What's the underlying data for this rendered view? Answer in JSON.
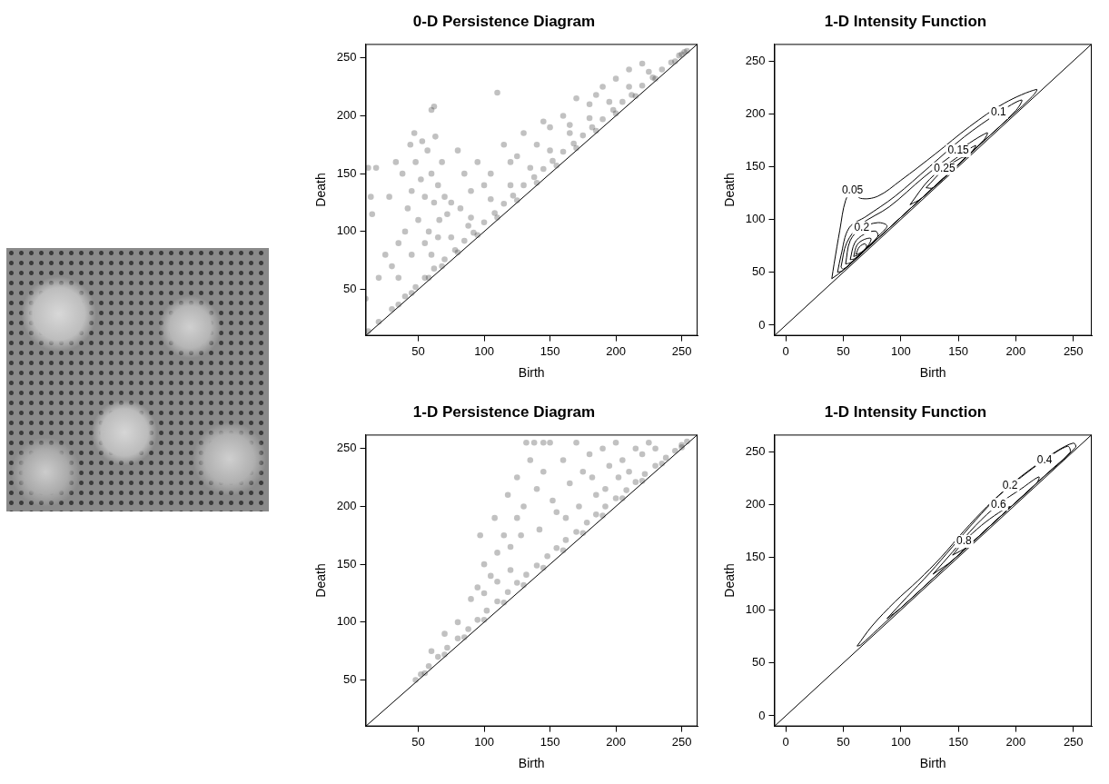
{
  "chart_data": [
    {
      "type": "scatter",
      "title": "0-D Persistence Diagram",
      "x_label": "Birth",
      "y_label": "Death",
      "xlim": [
        10,
        262
      ],
      "ylim": [
        10,
        262
      ],
      "xticks": [
        50,
        100,
        150,
        200,
        250
      ],
      "yticks": [
        50,
        100,
        150,
        200,
        250
      ],
      "grid": false,
      "color": "#333333",
      "marker": "circle",
      "x": [
        12,
        20,
        30,
        40,
        48,
        55,
        62,
        70,
        78,
        85,
        92,
        100,
        108,
        115,
        122,
        130,
        138,
        145,
        152,
        160,
        168,
        175,
        182,
        190,
        198,
        205,
        212,
        220,
        228,
        235,
        242,
        248,
        252,
        254,
        35,
        45,
        58,
        68,
        80,
        95,
        110,
        125,
        140,
        155,
        170,
        185,
        200,
        215,
        230,
        245,
        250,
        60,
        75,
        90,
        105,
        120,
        135,
        150,
        165,
        180,
        195,
        210,
        225,
        38,
        42,
        45,
        48,
        50,
        52,
        55,
        57,
        58,
        60,
        62,
        63,
        65,
        66,
        68,
        70,
        72,
        44,
        40,
        35,
        30,
        25,
        20,
        15,
        12,
        14,
        10,
        18,
        28,
        33,
        47,
        53,
        60,
        62,
        80,
        85,
        90,
        95,
        100,
        110,
        115,
        120,
        130,
        140,
        150,
        160,
        170,
        180,
        190,
        200,
        210,
        220,
        75,
        82,
        88,
        105,
        125,
        145,
        165,
        185,
        55,
        65,
        45,
        35
      ],
      "values": [
        14,
        22,
        33,
        44,
        52,
        60,
        68,
        76,
        84,
        92,
        99,
        108,
        116,
        124,
        131,
        140,
        147,
        154,
        161,
        169,
        176,
        183,
        190,
        197,
        205,
        212,
        218,
        226,
        233,
        240,
        246,
        252,
        255,
        256,
        37,
        47,
        60,
        70,
        82,
        97,
        112,
        127,
        142,
        157,
        172,
        187,
        202,
        217,
        232,
        247,
        253,
        80,
        95,
        112,
        128,
        140,
        155,
        170,
        185,
        198,
        212,
        225,
        238,
        150,
        120,
        135,
        160,
        110,
        145,
        130,
        170,
        100,
        150,
        125,
        182,
        140,
        110,
        160,
        130,
        115,
        175,
        100,
        90,
        70,
        80,
        60,
        115,
        155,
        130,
        42,
        155,
        130,
        160,
        185,
        178,
        205,
        208,
        170,
        150,
        135,
        160,
        140,
        220,
        175,
        160,
        185,
        175,
        190,
        200,
        215,
        210,
        225,
        232,
        240,
        245,
        125,
        120,
        105,
        150,
        165,
        195,
        192,
        218,
        90,
        95,
        80,
        60
      ]
    },
    {
      "type": "contour",
      "title": "1-D Intensity Function",
      "x_label": "Birth",
      "y_label": "Death",
      "xlim": [
        -10,
        266
      ],
      "ylim": [
        -10,
        266
      ],
      "xticks": [
        0,
        50,
        100,
        150,
        200,
        250
      ],
      "yticks": [
        0,
        50,
        100,
        150,
        200,
        250
      ],
      "grid": false,
      "color": "#000000",
      "contours": [
        {
          "level": 0.05,
          "label": "0.05",
          "label_at": [
            58,
            127
          ],
          "x": [
            40,
            42,
            47,
            52,
            58,
            65,
            80,
            100,
            130,
            160,
            190,
            218,
            214,
            180,
            140,
            100,
            70,
            50,
            40
          ],
          "y": [
            44,
            58,
            90,
            118,
            127,
            120,
            122,
            137,
            162,
            188,
            210,
            223,
            216,
            182,
            142,
            102,
            72,
            52,
            44
          ]
        },
        {
          "level": 0.1,
          "label": "0.1",
          "label_at": [
            185,
            201
          ],
          "x": [
            45,
            48,
            55,
            70,
            95,
            125,
            155,
            185,
            205,
            200,
            170,
            135,
            100,
            70,
            50,
            45
          ],
          "y": [
            50,
            66,
            92,
            103,
            122,
            150,
            178,
            201,
            213,
            203,
            172,
            137,
            102,
            72,
            52,
            50
          ]
        },
        {
          "level": 0.15,
          "label": "0.15",
          "label_at": [
            150,
            165
          ],
          "x": [
            48,
            53,
            65,
            90,
            120,
            150,
            175,
            172,
            145,
            115,
            85,
            60,
            50,
            48
          ],
          "y": [
            55,
            78,
            95,
            112,
            140,
            165,
            182,
            175,
            147,
            117,
            87,
            62,
            53,
            55
          ]
        },
        {
          "level": 0.2,
          "label": "0.2",
          "label_at": [
            66,
            92
          ],
          "x": [
            52,
            56,
            66,
            80,
            88,
            82,
            68,
            56,
            52
          ],
          "y": [
            58,
            80,
            92,
            97,
            94,
            86,
            70,
            59,
            58
          ]
        },
        {
          "level": 0.2,
          "x": [
            108,
            125,
            148,
            165,
            160,
            140,
            118,
            108
          ],
          "y": [
            114,
            138,
            158,
            170,
            162,
            142,
            120,
            114
          ]
        },
        {
          "level": 0.25,
          "x": [
            56,
            60,
            68,
            78,
            80,
            70,
            60,
            56
          ],
          "y": [
            62,
            78,
            86,
            89,
            84,
            73,
            63,
            62
          ]
        },
        {
          "level": 0.25,
          "label": "0.25",
          "label_at": [
            138,
            148
          ],
          "x": [
            122,
            138,
            152,
            156,
            145,
            128,
            122
          ],
          "y": [
            130,
            148,
            158,
            159,
            147,
            130,
            130
          ]
        },
        {
          "level": 0.3,
          "x": [
            59,
            62,
            68,
            74,
            72,
            64,
            59
          ],
          "y": [
            65,
            76,
            81,
            82,
            76,
            67,
            65
          ]
        },
        {
          "level": 0.35,
          "x": [
            61,
            64,
            69,
            70,
            64,
            61
          ],
          "y": [
            67,
            74,
            77,
            73,
            68,
            67
          ]
        }
      ]
    },
    {
      "type": "scatter",
      "title": "1-D Persistence Diagram",
      "x_label": "Birth",
      "y_label": "Death",
      "xlim": [
        10,
        262
      ],
      "ylim": [
        10,
        262
      ],
      "xticks": [
        50,
        100,
        150,
        200,
        250
      ],
      "yticks": [
        50,
        100,
        150,
        200,
        250
      ],
      "grid": false,
      "color": "#333333",
      "marker": "circle",
      "x": [
        48,
        52,
        58,
        65,
        72,
        80,
        88,
        95,
        102,
        110,
        118,
        125,
        132,
        140,
        148,
        155,
        162,
        170,
        178,
        185,
        192,
        200,
        208,
        215,
        222,
        230,
        238,
        245,
        250,
        254,
        55,
        70,
        85,
        100,
        115,
        130,
        145,
        160,
        175,
        190,
        205,
        220,
        235,
        250,
        90,
        95,
        100,
        105,
        110,
        115,
        120,
        125,
        130,
        135,
        138,
        140,
        145,
        150,
        155,
        160,
        165,
        170,
        175,
        180,
        185,
        190,
        195,
        200,
        205,
        210,
        215,
        220,
        225,
        230,
        118,
        128,
        142,
        152,
        162,
        172,
        182,
        192,
        202,
        100,
        110,
        120,
        80,
        70,
        60,
        97,
        108,
        125,
        132,
        145
      ],
      "values": [
        50,
        55,
        62,
        70,
        78,
        86,
        94,
        102,
        110,
        118,
        126,
        134,
        141,
        149,
        157,
        164,
        171,
        178,
        186,
        193,
        200,
        207,
        214,
        221,
        228,
        235,
        242,
        248,
        253,
        256,
        56,
        72,
        87,
        102,
        117,
        132,
        147,
        162,
        177,
        192,
        207,
        222,
        237,
        251,
        120,
        130,
        150,
        140,
        160,
        175,
        165,
        190,
        200,
        240,
        255,
        215,
        230,
        255,
        195,
        240,
        220,
        255,
        230,
        245,
        210,
        250,
        235,
        255,
        240,
        230,
        250,
        245,
        255,
        250,
        210,
        175,
        180,
        205,
        190,
        200,
        225,
        215,
        225,
        125,
        135,
        145,
        100,
        90,
        75,
        175,
        190,
        225,
        255,
        255
      ]
    },
    {
      "type": "contour",
      "title": "1-D Intensity Function",
      "x_label": "Birth",
      "y_label": "Death",
      "xlim": [
        -10,
        266
      ],
      "ylim": [
        -10,
        266
      ],
      "xticks": [
        0,
        50,
        100,
        150,
        200,
        250
      ],
      "yticks": [
        0,
        50,
        100,
        150,
        200,
        250
      ],
      "grid": false,
      "color": "#000000",
      "contours": [
        {
          "level": 0.2,
          "label": "0.2",
          "label_at": [
            195,
            218
          ],
          "x": [
            62,
            75,
            95,
            115,
            135,
            155,
            175,
            195,
            215,
            235,
            250,
            252,
            230,
            200,
            170,
            140,
            110,
            80,
            65,
            62
          ],
          "y": [
            66,
            85,
            108,
            128,
            150,
            175,
            198,
            218,
            235,
            250,
            258,
            254,
            232,
            202,
            172,
            142,
            112,
            82,
            67,
            66
          ]
        },
        {
          "level": 0.4,
          "label": "0.4",
          "label_at": [
            225,
            242
          ],
          "x": [
            88,
            105,
            125,
            145,
            165,
            185,
            205,
            225,
            245,
            247,
            220,
            190,
            160,
            130,
            100,
            88
          ],
          "y": [
            92,
            112,
            135,
            160,
            185,
            208,
            226,
            242,
            255,
            249,
            222,
            192,
            162,
            132,
            102,
            92
          ]
        },
        {
          "level": 0.6,
          "label": "0.6",
          "label_at": [
            185,
            200
          ],
          "x": [
            128,
            145,
            165,
            185,
            205,
            220,
            218,
            195,
            170,
            145,
            128
          ],
          "y": [
            134,
            155,
            180,
            200,
            215,
            226,
            220,
            197,
            172,
            147,
            134
          ]
        },
        {
          "level": 0.8,
          "label": "0.8",
          "label_at": [
            155,
            165
          ],
          "x": [
            145,
            155,
            170,
            185,
            195,
            192,
            175,
            158,
            145
          ],
          "y": [
            152,
            165,
            180,
            192,
            198,
            194,
            177,
            160,
            152
          ]
        }
      ]
    }
  ]
}
